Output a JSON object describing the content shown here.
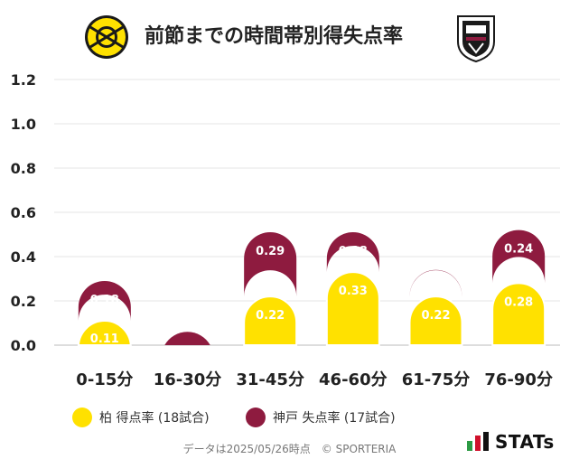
{
  "title": "前節までの時間帯別得失点率",
  "legend": [
    {
      "label": "柏 得点率 (18試合)",
      "color": "#FFE100"
    },
    {
      "label": "神戸 失点率 (17試合)",
      "color": "#8E1B3F"
    }
  ],
  "footer": "データは2025/05/26時点　© SPORTERIA",
  "brand": "STATs",
  "chart_data": {
    "type": "bar",
    "stacked": true,
    "categories": [
      "0-15分",
      "16-30分",
      "31-45分",
      "46-60分",
      "61-75分",
      "76-90分"
    ],
    "series": [
      {
        "name": "柏 得点率 (18試合)",
        "color": "#FFE100",
        "values": [
          0.11,
          0.0,
          0.22,
          0.33,
          0.22,
          0.28
        ],
        "labels": [
          "0.11",
          "",
          "0.22",
          "0.33",
          "0.22",
          "0.28"
        ]
      },
      {
        "name": "神戸 失点率 (17試合)",
        "color": "#8E1B3F",
        "values": [
          0.18,
          0.06,
          0.29,
          0.18,
          0.12,
          0.24
        ],
        "labels": [
          "0.18",
          "",
          "0.29",
          "0.18",
          "0.12",
          "0.24"
        ]
      }
    ],
    "yticks": [
      "0.0",
      "0.2",
      "0.4",
      "0.6",
      "0.8",
      "1.0",
      "1.2"
    ],
    "ylim": [
      0,
      1.2
    ],
    "grid": true,
    "legend_position": "bottom"
  }
}
